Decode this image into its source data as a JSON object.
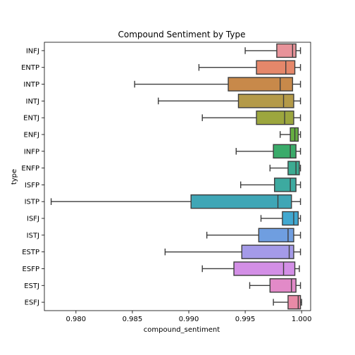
{
  "chart_data": {
    "type": "boxplot",
    "orientation": "horizontal",
    "title": "Compound Sentiment by Type",
    "xlabel": "compound_sentiment",
    "ylabel": "type",
    "xlim": [
      0.9772,
      1.0008
    ],
    "xticks": [
      0.98,
      0.985,
      0.99,
      0.995,
      1.0
    ],
    "xtick_labels": [
      "0.980",
      "0.985",
      "0.990",
      "0.995",
      "1.000"
    ],
    "grid": false,
    "series": [
      {
        "name": "INFJ",
        "color": "#e8939a",
        "whisker_low": 0.995,
        "q1": 0.9978,
        "median": 0.9992,
        "q3": 0.9995,
        "whisker_high": 0.9999
      },
      {
        "name": "ENTP",
        "color": "#e5876a",
        "whisker_low": 0.9909,
        "q1": 0.996,
        "median": 0.9986,
        "q3": 0.9994,
        "whisker_high": 0.9999
      },
      {
        "name": "INTP",
        "color": "#c8894a",
        "whisker_low": 0.9852,
        "q1": 0.9935,
        "median": 0.9981,
        "q3": 0.9992,
        "whisker_high": 0.9999
      },
      {
        "name": "INTJ",
        "color": "#b49a48",
        "whisker_low": 0.9873,
        "q1": 0.9944,
        "median": 0.9984,
        "q3": 0.9993,
        "whisker_high": 0.9999
      },
      {
        "name": "ENTJ",
        "color": "#9ca63e",
        "whisker_low": 0.9912,
        "q1": 0.996,
        "median": 0.9985,
        "q3": 0.9993,
        "whisker_high": 0.9999
      },
      {
        "name": "ENFJ",
        "color": "#66ae42",
        "whisker_low": 0.9981,
        "q1": 0.999,
        "median": 0.9994,
        "q3": 0.9997,
        "whisker_high": 0.9999
      },
      {
        "name": "INFP",
        "color": "#3aab6a",
        "whisker_low": 0.9942,
        "q1": 0.9975,
        "median": 0.999,
        "q3": 0.9995,
        "whisker_high": 0.9999
      },
      {
        "name": "ENFP",
        "color": "#3dab92",
        "whisker_low": 0.9972,
        "q1": 0.9988,
        "median": 0.9995,
        "q3": 0.9998,
        "whisker_high": 0.9999
      },
      {
        "name": "ISFP",
        "color": "#3daaa0",
        "whisker_low": 0.9946,
        "q1": 0.9976,
        "median": 0.999,
        "q3": 0.9995,
        "whisker_high": 0.9999
      },
      {
        "name": "ISTP",
        "color": "#3fa6b6",
        "whisker_low": 0.9778,
        "q1": 0.9902,
        "median": 0.9979,
        "q3": 0.9991,
        "whisker_high": 0.9999
      },
      {
        "name": "ISFJ",
        "color": "#41a8d0",
        "whisker_low": 0.9964,
        "q1": 0.9983,
        "median": 0.9993,
        "q3": 0.9997,
        "whisker_high": 0.9999
      },
      {
        "name": "ISTJ",
        "color": "#6f9ee0",
        "whisker_low": 0.9916,
        "q1": 0.9962,
        "median": 0.9988,
        "q3": 0.9993,
        "whisker_high": 0.9999
      },
      {
        "name": "ESTP",
        "color": "#a49ae8",
        "whisker_low": 0.9879,
        "q1": 0.9947,
        "median": 0.9989,
        "q3": 0.9993,
        "whisker_high": 0.9999
      },
      {
        "name": "ESFP",
        "color": "#d38fe6",
        "whisker_low": 0.9912,
        "q1": 0.994,
        "median": 0.9984,
        "q3": 0.9994,
        "whisker_high": 0.9998
      },
      {
        "name": "ESTJ",
        "color": "#e28ac8",
        "whisker_low": 0.9954,
        "q1": 0.9972,
        "median": 0.9991,
        "q3": 0.9995,
        "whisker_high": 0.9999
      },
      {
        "name": "ESFJ",
        "color": "#e88aa6",
        "whisker_low": 0.9975,
        "q1": 0.9988,
        "median": 0.9997,
        "q3": 0.9999,
        "whisker_high": 1.0
      }
    ]
  }
}
